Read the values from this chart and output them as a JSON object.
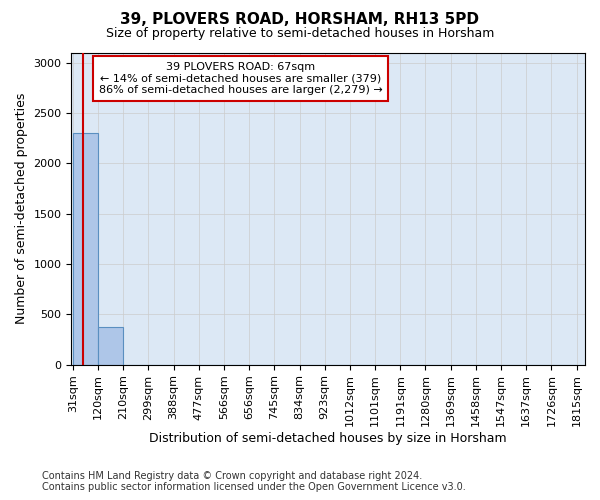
{
  "title": "39, PLOVERS ROAD, HORSHAM, RH13 5PD",
  "subtitle": "Size of property relative to semi-detached houses in Horsham",
  "xlabel": "Distribution of semi-detached houses by size in Horsham",
  "ylabel": "Number of semi-detached properties",
  "footer_line1": "Contains HM Land Registry data © Crown copyright and database right 2024.",
  "footer_line2": "Contains public sector information licensed under the Open Government Licence v3.0.",
  "annotation_title": "39 PLOVERS ROAD: 67sqm",
  "annotation_line2": "← 14% of semi-detached houses are smaller (379)",
  "annotation_line3": "86% of semi-detached houses are larger (2,279) →",
  "property_size_sqm": 67,
  "bin_edges": [
    31,
    120,
    210,
    299,
    388,
    477,
    566,
    656,
    745,
    834,
    923,
    1012,
    1101,
    1191,
    1280,
    1369,
    1458,
    1547,
    1637,
    1726,
    1815
  ],
  "bin_labels": [
    "31sqm",
    "120sqm",
    "210sqm",
    "299sqm",
    "388sqm",
    "477sqm",
    "566sqm",
    "656sqm",
    "745sqm",
    "834sqm",
    "923sqm",
    "1012sqm",
    "1101sqm",
    "1191sqm",
    "1280sqm",
    "1369sqm",
    "1458sqm",
    "1547sqm",
    "1637sqm",
    "1726sqm",
    "1815sqm"
  ],
  "bar_heights": [
    2300,
    379,
    0,
    0,
    0,
    0,
    0,
    0,
    0,
    0,
    0,
    0,
    0,
    0,
    0,
    0,
    0,
    0,
    0,
    0
  ],
  "bar_color": "#aec6e8",
  "bar_edge_color": "#5a8fc0",
  "vline_color": "#cc0000",
  "annotation_box_edgecolor": "#cc0000",
  "ylim": [
    0,
    3100
  ],
  "yticks": [
    0,
    500,
    1000,
    1500,
    2000,
    2500,
    3000
  ],
  "grid_color": "#cccccc",
  "background_color": "#dce8f5",
  "title_fontsize": 11,
  "subtitle_fontsize": 9,
  "annotation_fontsize": 8,
  "tick_fontsize": 8,
  "xlabel_fontsize": 9,
  "ylabel_fontsize": 9,
  "footer_fontsize": 7
}
